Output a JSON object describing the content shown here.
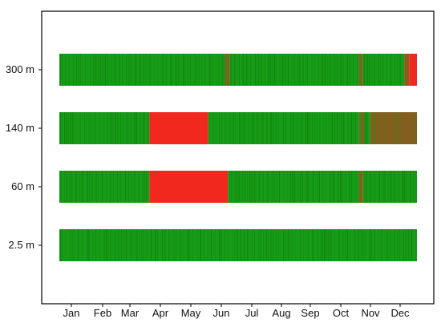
{
  "chart_data": {
    "type": "heatmap",
    "title": "",
    "xlabel": "",
    "ylabel": "",
    "months": [
      "Jan",
      "Feb",
      "Mar",
      "Apr",
      "May",
      "Jun",
      "Jul",
      "Aug",
      "Sep",
      "Oct",
      "Nov",
      "Dec"
    ],
    "rows": [
      {
        "label": "300 m",
        "segments": [
          {
            "from": "Jan 1",
            "to": "Jun 19",
            "color": "green"
          },
          {
            "from": "Jun 19",
            "to": "Jun 24",
            "color": "brown"
          },
          {
            "from": "Jun 24",
            "to": "Nov 3",
            "color": "green"
          },
          {
            "from": "Nov 3",
            "to": "Nov 7",
            "color": "brown"
          },
          {
            "from": "Nov 7",
            "to": "Dec 19",
            "color": "green"
          },
          {
            "from": "Dec 19",
            "to": "Dec 24",
            "color": "brown"
          },
          {
            "from": "Dec 24",
            "to": "Dec 31",
            "color": "red"
          }
        ]
      },
      {
        "label": "140 m",
        "segments": [
          {
            "from": "Jan 1",
            "to": "Apr 3",
            "color": "green"
          },
          {
            "from": "Apr 3",
            "to": "Jun 2",
            "color": "red"
          },
          {
            "from": "Jun 2",
            "to": "Nov 3",
            "color": "green"
          },
          {
            "from": "Nov 3",
            "to": "Nov 8",
            "color": "brown"
          },
          {
            "from": "Nov 8",
            "to": "Nov 14",
            "color": "green"
          },
          {
            "from": "Nov 14",
            "to": "Dec 31",
            "color": "brown"
          }
        ]
      },
      {
        "label": "60 m",
        "segments": [
          {
            "from": "Jan 1",
            "to": "Apr 3",
            "color": "green"
          },
          {
            "from": "Apr 3",
            "to": "Jun 22",
            "color": "red"
          },
          {
            "from": "Jun 22",
            "to": "Nov 3",
            "color": "green"
          },
          {
            "from": "Nov 3",
            "to": "Nov 7",
            "color": "brown"
          },
          {
            "from": "Nov 7",
            "to": "Dec 31",
            "color": "green"
          }
        ]
      },
      {
        "label": "2.5 m",
        "segments": [
          {
            "from": "Jan 1",
            "to": "Dec 31",
            "color": "green"
          }
        ]
      }
    ],
    "colors": {
      "green": "#169c16",
      "dark_green": "#127a12",
      "brown": "#8b5a1f",
      "red": "#f0281e",
      "axis": "#000000"
    },
    "grid": false,
    "legend": "none"
  }
}
